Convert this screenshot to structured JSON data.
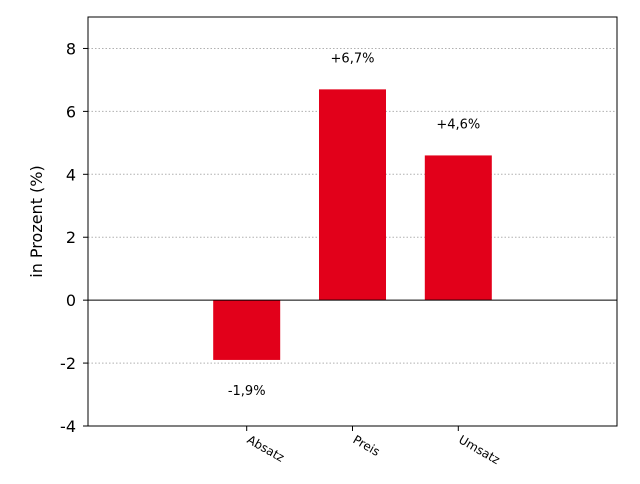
{
  "chart_data": {
    "type": "bar",
    "categories": [
      "Absatz",
      "Preis",
      "Umsatz"
    ],
    "values": [
      -1.9,
      6.7,
      4.6
    ],
    "data_labels": [
      "-1,9%",
      "+6,7%",
      "+4,6%"
    ],
    "title": "",
    "xlabel": "",
    "ylabel": "in Prozent (%)",
    "ylim": [
      -4,
      9
    ],
    "yticks": [
      -4,
      -2,
      0,
      2,
      4,
      6,
      8
    ],
    "ytick_labels": [
      "-4",
      "-2",
      "0",
      "2",
      "4",
      "6",
      "8"
    ],
    "grid": "horizontal dotted",
    "legend": "none",
    "colors": {
      "bar": "#e2001a",
      "grid": "#b0b0b0",
      "axis": "#000000"
    }
  }
}
